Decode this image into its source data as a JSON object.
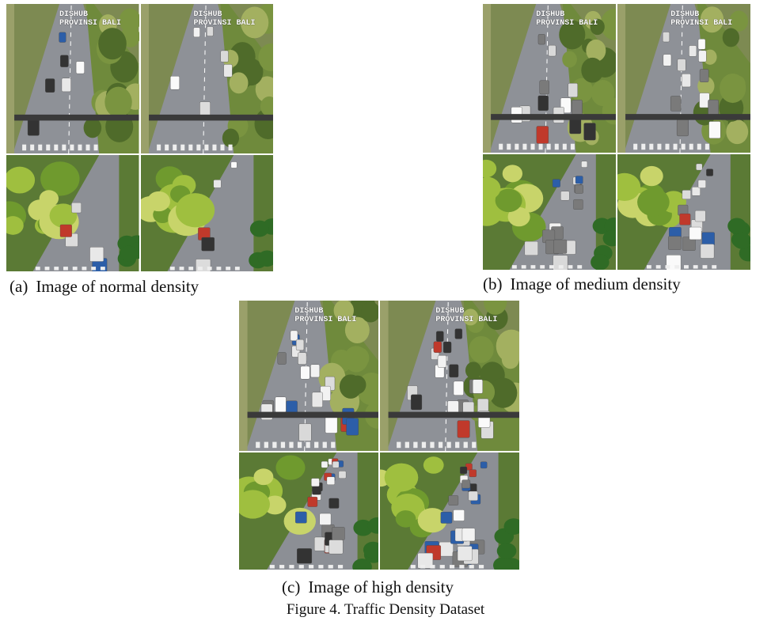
{
  "panels": [
    {
      "label": "(a)",
      "caption": "Image of normal density",
      "top_images": [
        {
          "overlay": [
            "DISHUB",
            "PROVINSI BALI"
          ]
        },
        {
          "overlay": [
            "DISHUB",
            "PROVINSI BALI"
          ]
        }
      ]
    },
    {
      "label": "(b)",
      "caption": "Image of medium density",
      "top_images": [
        {
          "overlay": [
            "DISHUB",
            "PROVINSI BALI"
          ]
        },
        {
          "overlay": [
            "DISHUB",
            "PROVINSI BALI"
          ]
        }
      ]
    },
    {
      "label": "(c)",
      "caption": "Image of high density",
      "top_images": [
        {
          "overlay": [
            "DISHUB",
            "PROVINSI BALI"
          ]
        },
        {
          "overlay": [
            "DISHUB",
            "PROVINSI BALI"
          ]
        }
      ]
    }
  ],
  "figure_caption": "Figure 4. Traffic Density Dataset"
}
